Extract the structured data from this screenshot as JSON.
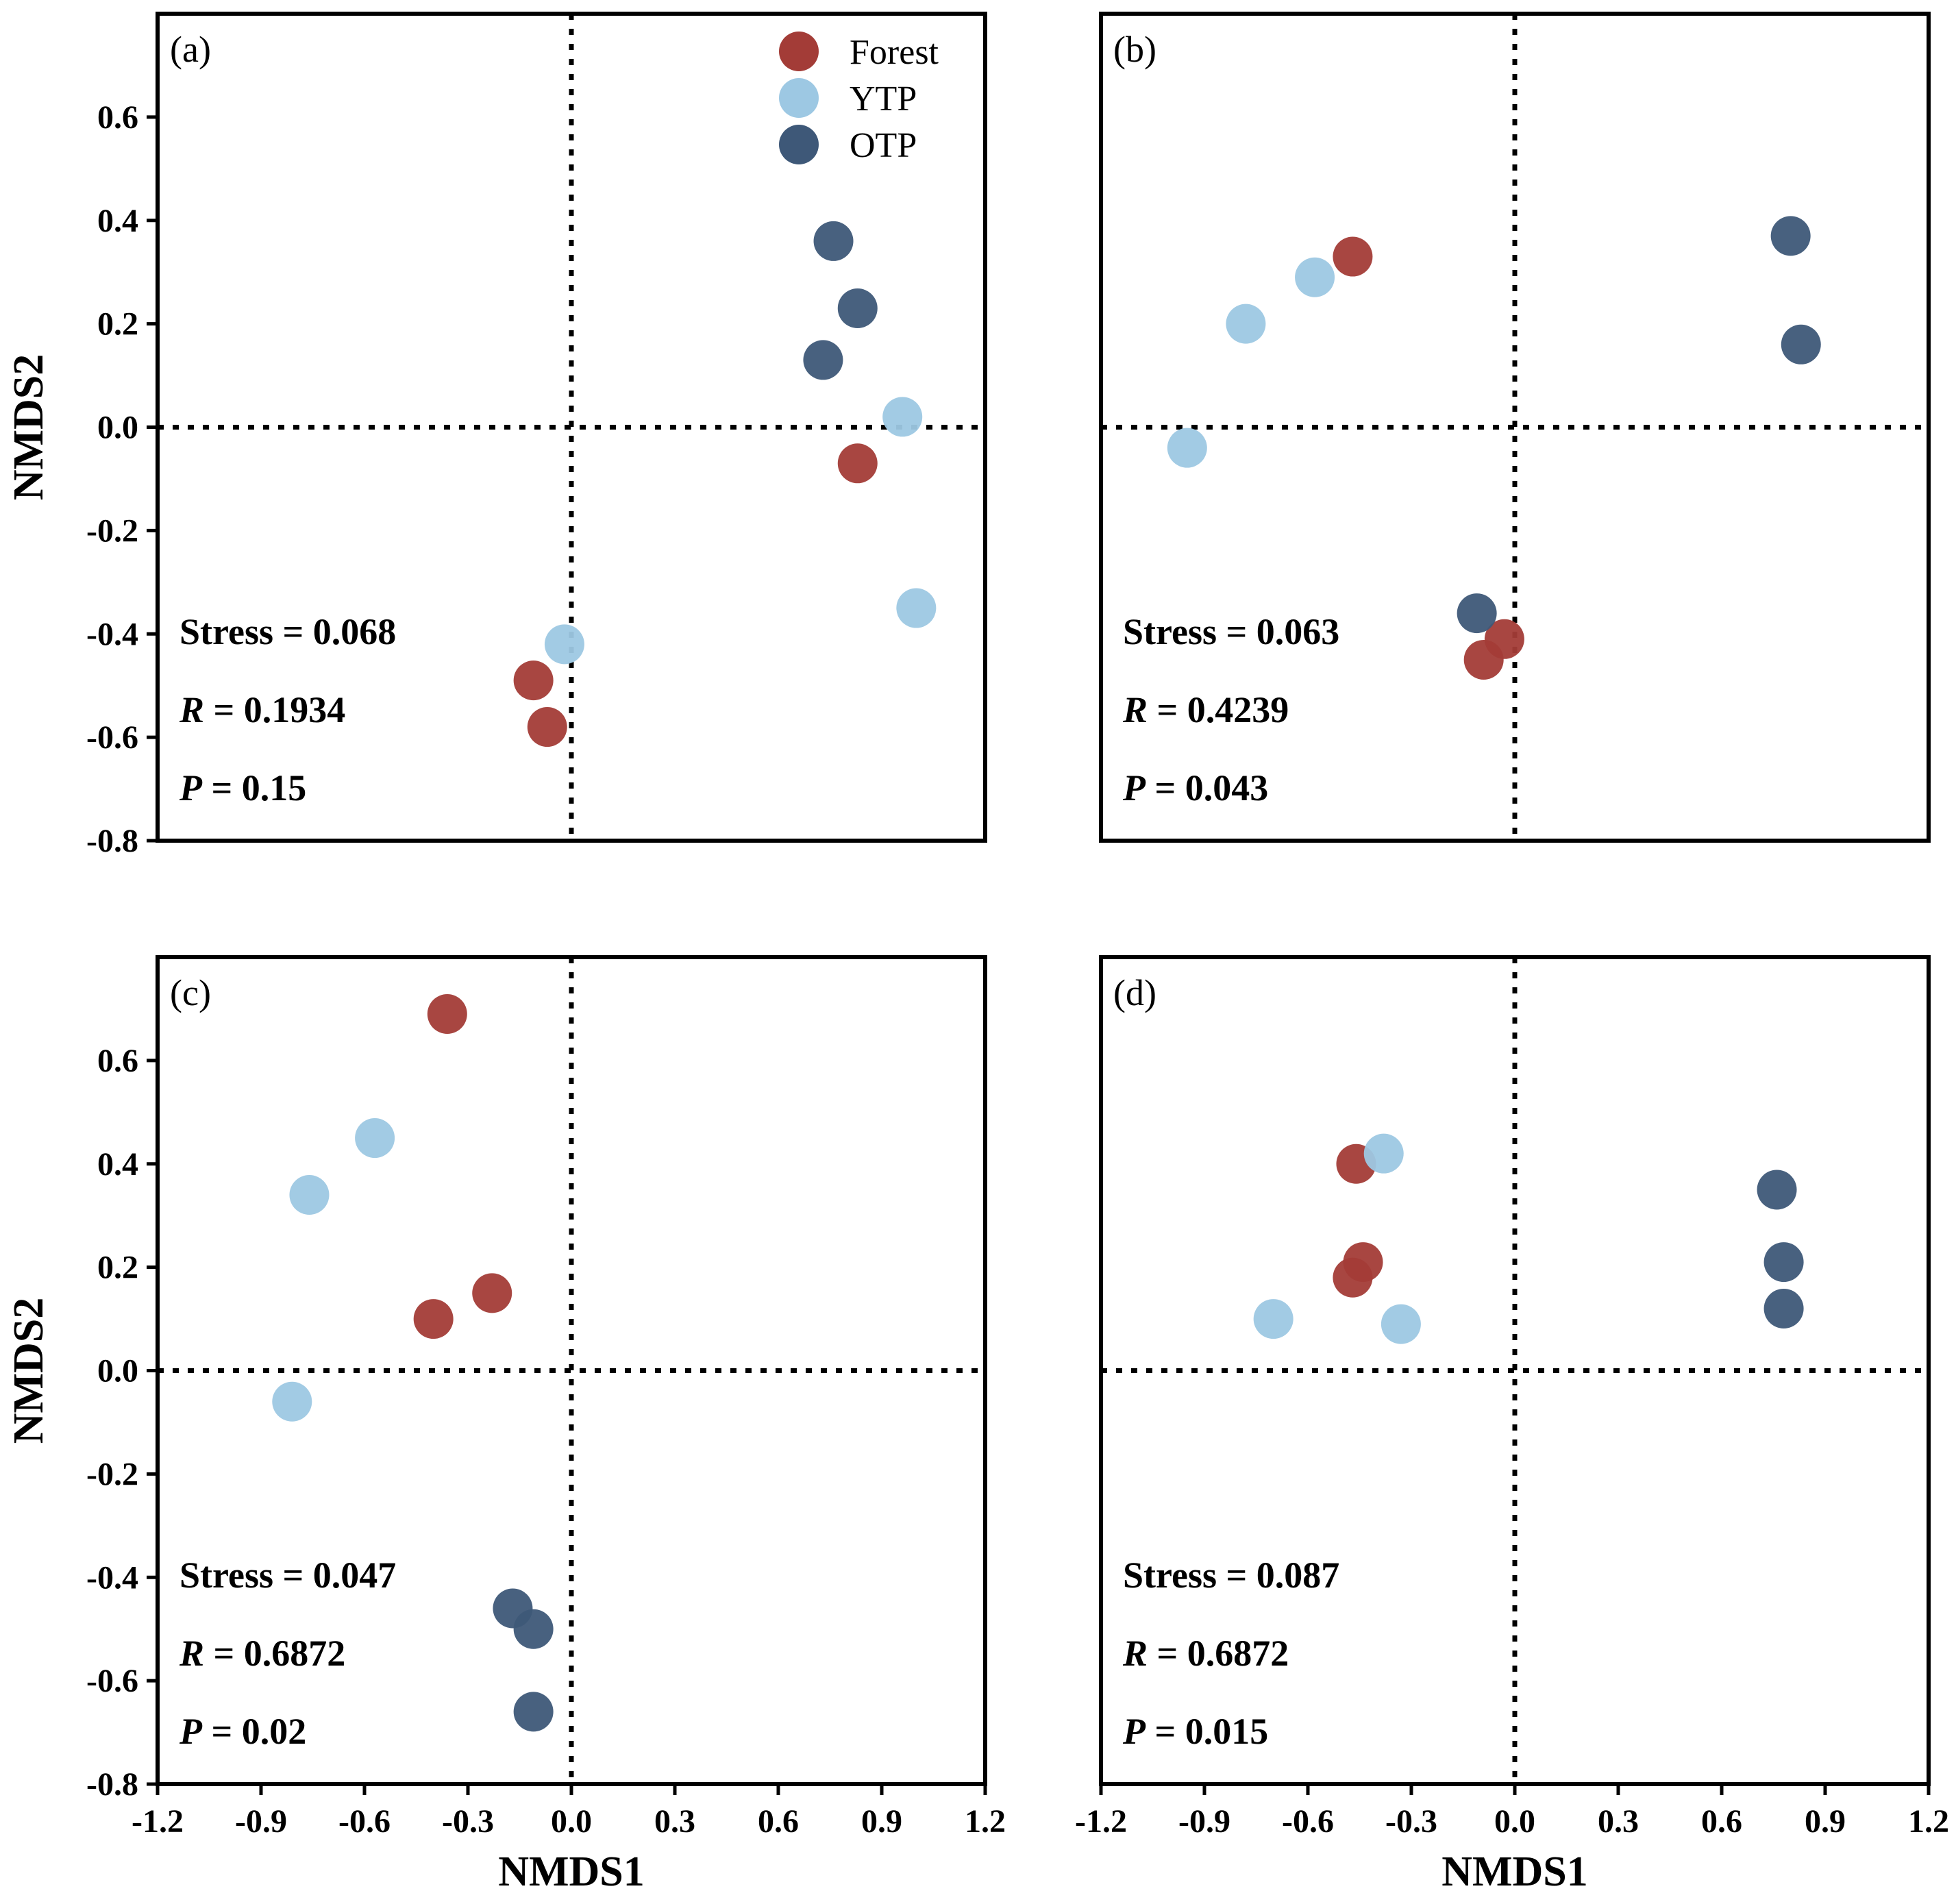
{
  "chart_data": {
    "type": "scatter",
    "shared": {
      "xlabel": "NMDS1",
      "ylabel": "NMDS2",
      "xlim": [
        -1.2,
        1.2
      ],
      "ylim": [
        -0.8,
        0.8
      ],
      "xticks": [
        -1.2,
        -0.9,
        -0.6,
        -0.3,
        0.0,
        0.3,
        0.6,
        0.9,
        1.2
      ],
      "xtick_labels": [
        "-1.2",
        "-0.9",
        "-0.6",
        "-0.3",
        "0.0",
        "0.3",
        "0.6",
        "0.9",
        "1.2"
      ],
      "yticks": [
        -0.8,
        -0.6,
        -0.4,
        -0.2,
        0.0,
        0.2,
        0.4,
        0.6
      ],
      "ytick_labels": [
        "-0.8",
        "-0.6",
        "-0.4",
        "-0.2",
        "0.0",
        "0.2",
        "0.4",
        "0.6"
      ],
      "reference_lines": {
        "x": 0.0,
        "y": 0.0,
        "style": "dotted"
      },
      "groups": [
        {
          "name": "Forest",
          "color": "#A33C37"
        },
        {
          "name": "YTP",
          "color": "#9DC8E3"
        },
        {
          "name": "OTP",
          "color": "#3E5878"
        }
      ],
      "legend": {
        "entries": [
          "Forest",
          "YTP",
          "OTP"
        ],
        "placement": "top-right of panel (a)"
      }
    },
    "panels": [
      {
        "id": "a",
        "label": "(a)",
        "stats": {
          "stress_label": "Stress",
          "stress": "0.068",
          "r_label": "R",
          "r": "0.1934",
          "p_label": "P",
          "p": "0.15"
        },
        "series": [
          {
            "name": "Forest",
            "x": [
              -0.11,
              -0.07,
              0.83
            ],
            "y": [
              -0.49,
              -0.58,
              -0.07
            ]
          },
          {
            "name": "YTP",
            "x": [
              -0.02,
              0.96,
              1.0
            ],
            "y": [
              -0.42,
              0.02,
              -0.35
            ]
          },
          {
            "name": "OTP",
            "x": [
              0.76,
              0.83,
              0.73
            ],
            "y": [
              0.36,
              0.23,
              0.13
            ]
          }
        ]
      },
      {
        "id": "b",
        "label": "(b)",
        "stats": {
          "stress_label": "Stress",
          "stress": "0.063",
          "r_label": "R",
          "r": "0.4239",
          "p_label": "P",
          "p": "0.043"
        },
        "series": [
          {
            "name": "Forest",
            "x": [
              -0.47,
              -0.03,
              -0.09
            ],
            "y": [
              0.33,
              -0.41,
              -0.45
            ]
          },
          {
            "name": "YTP",
            "x": [
              -0.58,
              -0.78,
              -0.95
            ],
            "y": [
              0.29,
              0.2,
              -0.04
            ]
          },
          {
            "name": "OTP",
            "x": [
              0.8,
              0.83,
              -0.11
            ],
            "y": [
              0.37,
              0.16,
              -0.36
            ]
          }
        ]
      },
      {
        "id": "c",
        "label": "(c)",
        "stats": {
          "stress_label": "Stress",
          "stress": "0.047",
          "r_label": "R",
          "r": "0.6872",
          "p_label": "P",
          "p": "0.02"
        },
        "series": [
          {
            "name": "Forest",
            "x": [
              -0.36,
              -0.23,
              -0.4
            ],
            "y": [
              0.69,
              0.15,
              0.1
            ]
          },
          {
            "name": "YTP",
            "x": [
              -0.57,
              -0.76,
              -0.81
            ],
            "y": [
              0.45,
              0.34,
              -0.06
            ]
          },
          {
            "name": "OTP",
            "x": [
              -0.17,
              -0.11,
              -0.11
            ],
            "y": [
              -0.46,
              -0.5,
              -0.66
            ]
          }
        ]
      },
      {
        "id": "d",
        "label": "(d)",
        "stats": {
          "stress_label": "Stress",
          "stress": "0.087",
          "r_label": "R",
          "r": "0.6872",
          "p_label": "P",
          "p": "0.015"
        },
        "series": [
          {
            "name": "Forest",
            "x": [
              -0.46,
              -0.44,
              -0.47
            ],
            "y": [
              0.4,
              0.21,
              0.18
            ]
          },
          {
            "name": "YTP",
            "x": [
              -0.38,
              -0.7,
              -0.33
            ],
            "y": [
              0.42,
              0.1,
              0.09
            ]
          },
          {
            "name": "OTP",
            "x": [
              0.76,
              0.78,
              0.78
            ],
            "y": [
              0.35,
              0.21,
              0.12
            ]
          }
        ]
      }
    ]
  }
}
